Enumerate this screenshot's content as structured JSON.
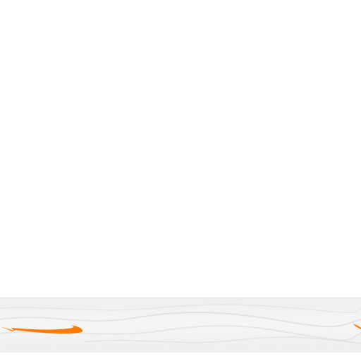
{
  "colors": {
    "background": "#ffffff",
    "band": "#f1f1f1",
    "swoosh_accent": "#ff7a00"
  },
  "icons": {
    "left_swoosh": "orange-swoosh-icon",
    "right_swoosh": "orange-swoosh-icon"
  }
}
